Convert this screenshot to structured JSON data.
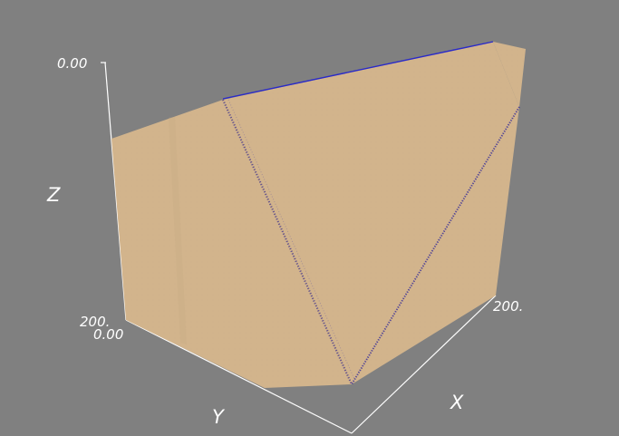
{
  "scene": {
    "background_color": "#808080",
    "surface_color": "#d2b48c",
    "edge_color": "#2222bb",
    "axis_color": "#ffffff"
  },
  "axes": {
    "z": {
      "label": "Z",
      "ticks": [
        "0.00",
        "200."
      ]
    },
    "y": {
      "label": "Y",
      "ticks": [
        "0.00"
      ]
    },
    "x": {
      "label": "X",
      "ticks": [
        "200."
      ]
    }
  }
}
